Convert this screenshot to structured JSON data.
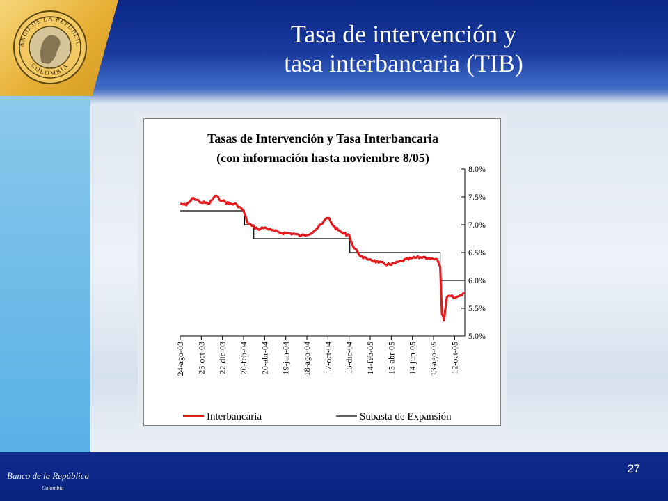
{
  "slide": {
    "title_line1": "Tasa de intervención y",
    "title_line2": "tasa interbancaria (TIB)",
    "page_number": "27",
    "footer_logo_text": "Banco de la República",
    "footer_logo_subtext": "Colombia",
    "seal_text_top": "BANCO DE LA REPUBLICA",
    "seal_text_bottom": "COLOMBIA"
  },
  "colors": {
    "interbancaria": "#e41a1c",
    "subasta": "#000000",
    "header": "#0a2784",
    "accent_gold": "#e6ae33"
  },
  "chart_data": {
    "type": "line",
    "title": "Tasas de Intervención y Tasa Interbancaria",
    "subtitle": "(con información hasta noviembre 8/05)",
    "y_axis_position": "right",
    "ylim": [
      0.05,
      0.08
    ],
    "y_ticks": [
      "8.0%",
      "7.5%",
      "7.0%",
      "6.5%",
      "6.0%",
      "5.5%",
      "5.0%"
    ],
    "x_tick_labels": [
      "24-ago-03",
      "23-oct-03",
      "22-dic-03",
      "20-feb-04",
      "20-abr-04",
      "19-jun-04",
      "18-ago-04",
      "17-oct-04",
      "16-dic-04",
      "14-feb-05",
      "15-abr-05",
      "14-jun-05",
      "13-ago-05",
      "12-oct-05"
    ],
    "legend_position": "bottom",
    "series": [
      {
        "name": "Interbancaria",
        "color": "#e41a1c",
        "points": [
          [
            "24-ago-03",
            0.0738
          ],
          [
            "10-sep-03",
            0.0735
          ],
          [
            "01-oct-03",
            0.0748
          ],
          [
            "23-oct-03",
            0.074
          ],
          [
            "15-nov-03",
            0.0738
          ],
          [
            "01-dic-03",
            0.0752
          ],
          [
            "22-dic-03",
            0.0743
          ],
          [
            "10-ene-04",
            0.0738
          ],
          [
            "01-feb-04",
            0.0736
          ],
          [
            "20-feb-04",
            0.0725
          ],
          [
            "01-mar-04",
            0.0705
          ],
          [
            "15-mar-04",
            0.0698
          ],
          [
            "01-abr-04",
            0.0692
          ],
          [
            "20-abr-04",
            0.0695
          ],
          [
            "10-may-04",
            0.069
          ],
          [
            "01-jun-04",
            0.0686
          ],
          [
            "19-jun-04",
            0.0685
          ],
          [
            "10-jul-04",
            0.0684
          ],
          [
            "01-ago-04",
            0.068
          ],
          [
            "18-ago-04",
            0.0682
          ],
          [
            "10-sep-04",
            0.069
          ],
          [
            "01-oct-04",
            0.0702
          ],
          [
            "10-oct-04",
            0.071
          ],
          [
            "20-oct-04",
            0.0712
          ],
          [
            "01-nov-04",
            0.0698
          ],
          [
            "15-nov-04",
            0.069
          ],
          [
            "01-dic-04",
            0.0684
          ],
          [
            "16-dic-04",
            0.0682
          ],
          [
            "28-dic-04",
            0.066
          ],
          [
            "10-ene-05",
            0.065
          ],
          [
            "25-ene-05",
            0.064
          ],
          [
            "14-feb-05",
            0.0638
          ],
          [
            "10-mar-05",
            0.0632
          ],
          [
            "15-abr-05",
            0.0628
          ],
          [
            "15-may-05",
            0.0635
          ],
          [
            "14-jun-05",
            0.064
          ],
          [
            "15-jul-05",
            0.0642
          ],
          [
            "01-ago-05",
            0.064
          ],
          [
            "13-ago-05",
            0.0638
          ],
          [
            "25-ago-05",
            0.0636
          ],
          [
            "01-sep-05",
            0.0625
          ],
          [
            "06-sep-05",
            0.054
          ],
          [
            "12-sep-05",
            0.0528
          ],
          [
            "20-sep-05",
            0.057
          ],
          [
            "01-oct-05",
            0.0572
          ],
          [
            "12-oct-05",
            0.0568
          ],
          [
            "25-oct-05",
            0.0572
          ],
          [
            "08-nov-05",
            0.0578
          ]
        ]
      },
      {
        "name": "Subasta de Expansión",
        "color": "#000000",
        "steps": [
          [
            "24-ago-03",
            0.0725
          ],
          [
            "23-feb-04",
            0.07
          ],
          [
            "20-mar-04",
            0.0675
          ],
          [
            "18-dic-04",
            0.065
          ],
          [
            "01-sep-05",
            0.06
          ],
          [
            "08-nov-05",
            0.06
          ]
        ]
      }
    ]
  }
}
